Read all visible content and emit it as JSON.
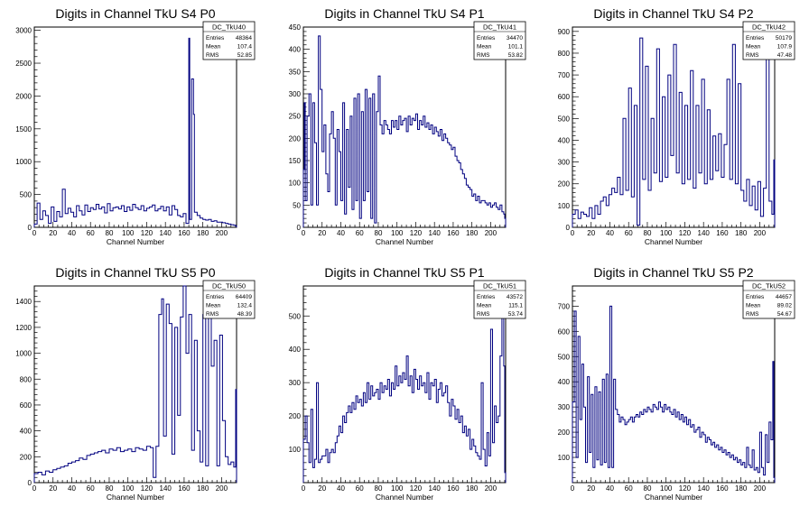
{
  "chart_data": [
    {
      "type": "bar",
      "title": "Digits in Channel TkU S4 P0",
      "xlabel": "Channel Number",
      "ylabel": "",
      "xlim": [
        0,
        216
      ],
      "ylim": [
        0,
        3050
      ],
      "xticks": [
        0,
        20,
        40,
        60,
        80,
        100,
        120,
        140,
        160,
        180,
        200
      ],
      "yticks": [
        0,
        500,
        1000,
        1500,
        2000,
        2500,
        3000
      ],
      "stats": {
        "name": "DC_TkU40",
        "entries": "48364",
        "mean": "107.4",
        "rms": "52.85"
      },
      "x": [
        0,
        3,
        6,
        9,
        12,
        15,
        18,
        21,
        24,
        27,
        30,
        33,
        36,
        39,
        42,
        45,
        48,
        51,
        54,
        57,
        60,
        63,
        66,
        69,
        72,
        75,
        78,
        81,
        84,
        87,
        90,
        93,
        96,
        99,
        102,
        105,
        108,
        111,
        114,
        117,
        120,
        123,
        126,
        129,
        132,
        135,
        138,
        141,
        144,
        147,
        150,
        153,
        156,
        159,
        162,
        165,
        166,
        168,
        170,
        171,
        174,
        177,
        180,
        183,
        186,
        189,
        192,
        195,
        198,
        201,
        204,
        207,
        210,
        213,
        215
      ],
      "values": [
        50,
        370,
        120,
        250,
        180,
        60,
        310,
        90,
        240,
        160,
        580,
        210,
        290,
        230,
        160,
        330,
        250,
        190,
        340,
        240,
        300,
        270,
        350,
        280,
        310,
        220,
        360,
        250,
        300,
        310,
        280,
        330,
        240,
        310,
        260,
        350,
        300,
        270,
        330,
        250,
        290,
        310,
        340,
        250,
        280,
        320,
        250,
        310,
        190,
        330,
        270,
        180,
        160,
        210,
        60,
        2880,
        120,
        2260,
        1720,
        230,
        180,
        140,
        120,
        110,
        120,
        90,
        100,
        80,
        80,
        70,
        60,
        50,
        40,
        30,
        20
      ]
    },
    {
      "type": "bar",
      "title": "Digits in Channel TkU S4 P1",
      "xlabel": "Channel Number",
      "ylabel": "",
      "xlim": [
        0,
        216
      ],
      "ylim": [
        0,
        450
      ],
      "xticks": [
        0,
        20,
        40,
        60,
        80,
        100,
        120,
        140,
        160,
        180,
        200
      ],
      "yticks": [
        0,
        50,
        100,
        150,
        200,
        250,
        300,
        350,
        400,
        450
      ],
      "stats": {
        "name": "DC_TkU41",
        "entries": "34470",
        "mean": "101.1",
        "rms": "53.82"
      },
      "x": [
        0,
        1,
        2,
        4,
        6,
        8,
        10,
        12,
        14,
        16,
        18,
        20,
        22,
        24,
        26,
        28,
        30,
        32,
        34,
        36,
        38,
        40,
        42,
        44,
        46,
        48,
        50,
        52,
        54,
        56,
        58,
        60,
        62,
        64,
        66,
        68,
        70,
        72,
        74,
        76,
        78,
        80,
        82,
        84,
        86,
        88,
        90,
        92,
        94,
        96,
        98,
        100,
        102,
        104,
        106,
        108,
        110,
        112,
        114,
        116,
        118,
        120,
        122,
        124,
        126,
        128,
        130,
        132,
        134,
        136,
        138,
        140,
        142,
        144,
        146,
        148,
        150,
        152,
        154,
        156,
        158,
        160,
        162,
        164,
        166,
        168,
        170,
        172,
        174,
        176,
        178,
        180,
        182,
        184,
        186,
        188,
        190,
        192,
        194,
        196,
        198,
        200,
        202,
        204,
        206,
        208,
        210,
        212,
        214,
        215
      ],
      "values": [
        130,
        280,
        60,
        250,
        300,
        50,
        280,
        190,
        50,
        430,
        310,
        170,
        230,
        120,
        80,
        210,
        260,
        200,
        50,
        220,
        170,
        60,
        280,
        30,
        220,
        90,
        250,
        40,
        290,
        60,
        300,
        20,
        260,
        60,
        310,
        80,
        290,
        20,
        300,
        10,
        260,
        340,
        230,
        210,
        240,
        230,
        220,
        210,
        240,
        225,
        240,
        220,
        250,
        230,
        240,
        245,
        215,
        250,
        230,
        245,
        240,
        255,
        220,
        240,
        230,
        250,
        225,
        235,
        220,
        230,
        210,
        225,
        215,
        205,
        220,
        195,
        210,
        200,
        190,
        185,
        175,
        180,
        160,
        150,
        145,
        130,
        120,
        110,
        95,
        90,
        85,
        70,
        75,
        60,
        70,
        55,
        60,
        60,
        55,
        50,
        55,
        45,
        50,
        55,
        45,
        40,
        50,
        35,
        30,
        20
      ]
    },
    {
      "type": "bar",
      "title": "Digits in Channel TkU S4 P2",
      "xlabel": "Channel Number",
      "ylabel": "",
      "xlim": [
        0,
        216
      ],
      "ylim": [
        0,
        920
      ],
      "xticks": [
        0,
        20,
        40,
        60,
        80,
        100,
        120,
        140,
        160,
        180,
        200
      ],
      "yticks": [
        0,
        100,
        200,
        300,
        400,
        500,
        600,
        700,
        800,
        900
      ],
      "stats": {
        "name": "DC_TkU42",
        "entries": "50179",
        "mean": "107.9",
        "rms": "47.48"
      },
      "x": [
        0,
        3,
        6,
        9,
        12,
        15,
        18,
        21,
        24,
        27,
        30,
        33,
        36,
        39,
        42,
        45,
        48,
        51,
        54,
        57,
        60,
        63,
        66,
        69,
        72,
        75,
        78,
        81,
        84,
        87,
        90,
        93,
        96,
        99,
        102,
        105,
        108,
        111,
        114,
        117,
        120,
        123,
        126,
        129,
        132,
        135,
        138,
        141,
        144,
        147,
        150,
        153,
        156,
        159,
        162,
        165,
        168,
        171,
        174,
        177,
        180,
        183,
        186,
        189,
        192,
        195,
        198,
        201,
        204,
        207,
        210,
        213,
        215
      ],
      "values": [
        60,
        80,
        40,
        70,
        60,
        50,
        90,
        40,
        100,
        60,
        120,
        140,
        100,
        150,
        180,
        160,
        230,
        150,
        500,
        170,
        640,
        140,
        560,
        10,
        870,
        220,
        740,
        170,
        500,
        250,
        820,
        210,
        600,
        230,
        700,
        330,
        840,
        250,
        620,
        200,
        560,
        220,
        720,
        180,
        560,
        250,
        680,
        200,
        540,
        220,
        420,
        260,
        430,
        230,
        380,
        680,
        220,
        840,
        200,
        660,
        170,
        120,
        220,
        100,
        190,
        80,
        210,
        50,
        180,
        830,
        120,
        60,
        310
      ]
    },
    {
      "type": "bar",
      "title": "Digits in Channel TkU S5 P0",
      "xlabel": "Channel Number",
      "ylabel": "",
      "xlim": [
        0,
        216
      ],
      "ylim": [
        0,
        1520
      ],
      "xticks": [
        0,
        20,
        40,
        60,
        80,
        100,
        120,
        140,
        160,
        180,
        200
      ],
      "yticks": [
        0,
        200,
        400,
        600,
        800,
        1000,
        1200,
        1400
      ],
      "stats": {
        "name": "DC_TkU50",
        "entries": "64409",
        "mean": "132.4",
        "rms": "48.39"
      },
      "x": [
        0,
        4,
        8,
        12,
        16,
        20,
        24,
        28,
        32,
        36,
        40,
        44,
        48,
        52,
        56,
        60,
        64,
        68,
        72,
        76,
        80,
        84,
        88,
        92,
        96,
        100,
        104,
        108,
        112,
        116,
        120,
        124,
        127,
        130,
        133,
        136,
        138,
        141,
        144,
        147,
        150,
        153,
        156,
        159,
        162,
        165,
        168,
        171,
        174,
        177,
        180,
        183,
        186,
        189,
        192,
        195,
        198,
        201,
        204,
        207,
        210,
        213,
        215
      ],
      "values": [
        70,
        80,
        60,
        90,
        80,
        100,
        110,
        120,
        130,
        150,
        160,
        170,
        190,
        180,
        210,
        220,
        230,
        240,
        250,
        230,
        260,
        250,
        270,
        240,
        250,
        260,
        240,
        270,
        260,
        250,
        280,
        270,
        40,
        280,
        1300,
        1420,
        360,
        1380,
        1230,
        220,
        1200,
        520,
        1280,
        1530,
        1000,
        1300,
        250,
        1100,
        400,
        160,
        1300,
        130,
        1500,
        900,
        1100,
        130,
        1140,
        480,
        200,
        140,
        160,
        120,
        720
      ]
    },
    {
      "type": "bar",
      "title": "Digits in Channel TkU S5 P1",
      "xlabel": "Channel Number",
      "ylabel": "",
      "xlim": [
        0,
        216
      ],
      "ylim": [
        0,
        590
      ],
      "xticks": [
        0,
        20,
        40,
        60,
        80,
        100,
        120,
        140,
        160,
        180,
        200
      ],
      "yticks": [
        100,
        200,
        300,
        400,
        500
      ],
      "stats": {
        "name": "DC_TkU51",
        "entries": "43572",
        "mean": "115.1",
        "rms": "53.74"
      },
      "x": [
        0,
        2,
        4,
        6,
        8,
        10,
        12,
        14,
        16,
        18,
        20,
        22,
        24,
        26,
        28,
        30,
        32,
        34,
        36,
        38,
        40,
        42,
        44,
        46,
        48,
        50,
        52,
        54,
        56,
        58,
        60,
        62,
        64,
        66,
        68,
        70,
        72,
        74,
        76,
        78,
        80,
        82,
        84,
        86,
        88,
        90,
        92,
        94,
        96,
        98,
        100,
        102,
        104,
        106,
        108,
        110,
        112,
        114,
        116,
        118,
        120,
        122,
        124,
        126,
        128,
        130,
        132,
        134,
        136,
        138,
        140,
        142,
        144,
        146,
        148,
        150,
        152,
        154,
        156,
        158,
        160,
        162,
        164,
        166,
        168,
        170,
        172,
        174,
        176,
        178,
        180,
        182,
        184,
        186,
        188,
        190,
        192,
        194,
        196,
        198,
        200,
        202,
        204,
        206,
        208,
        210,
        212,
        214,
        215
      ],
      "values": [
        130,
        200,
        120,
        60,
        220,
        45,
        70,
        300,
        60,
        70,
        80,
        80,
        100,
        60,
        90,
        100,
        90,
        120,
        140,
        170,
        150,
        200,
        180,
        210,
        230,
        210,
        240,
        220,
        260,
        240,
        250,
        230,
        270,
        240,
        300,
        250,
        290,
        260,
        270,
        280,
        250,
        300,
        270,
        290,
        280,
        310,
        260,
        300,
        280,
        350,
        290,
        320,
        300,
        330,
        310,
        380,
        290,
        320,
        270,
        340,
        310,
        280,
        320,
        290,
        300,
        270,
        330,
        250,
        300,
        290,
        310,
        240,
        280,
        300,
        260,
        270,
        290,
        240,
        200,
        250,
        230,
        190,
        220,
        180,
        200,
        150,
        170,
        140,
        160,
        100,
        130,
        110,
        90,
        80,
        70,
        300,
        100,
        50,
        150,
        80,
        460,
        120,
        230,
        180,
        200,
        380,
        500,
        350,
        30
      ]
    },
    {
      "type": "bar",
      "title": "Digits in Channel TkU S5 P2",
      "xlabel": "Channel Number",
      "ylabel": "",
      "xlim": [
        0,
        216
      ],
      "ylim": [
        0,
        780
      ],
      "xticks": [
        0,
        20,
        40,
        60,
        80,
        100,
        120,
        140,
        160,
        180,
        200
      ],
      "yticks": [
        100,
        200,
        300,
        400,
        500,
        600,
        700
      ],
      "stats": {
        "name": "DC_TkU52",
        "entries": "44657",
        "mean": "89.02",
        "rms": "54.67"
      },
      "x": [
        0,
        2,
        4,
        6,
        8,
        10,
        12,
        14,
        16,
        18,
        20,
        22,
        24,
        26,
        28,
        30,
        32,
        34,
        36,
        38,
        40,
        42,
        44,
        46,
        48,
        50,
        52,
        54,
        56,
        58,
        60,
        62,
        64,
        66,
        68,
        70,
        72,
        74,
        76,
        78,
        80,
        82,
        84,
        86,
        88,
        90,
        92,
        94,
        96,
        98,
        100,
        102,
        104,
        106,
        108,
        110,
        112,
        114,
        116,
        118,
        120,
        122,
        124,
        126,
        128,
        130,
        132,
        134,
        136,
        138,
        140,
        142,
        144,
        146,
        148,
        150,
        152,
        154,
        156,
        158,
        160,
        162,
        164,
        166,
        168,
        170,
        172,
        174,
        176,
        178,
        180,
        182,
        184,
        186,
        188,
        190,
        192,
        194,
        196,
        198,
        200,
        202,
        204,
        206,
        208,
        210,
        212,
        214,
        215
      ],
      "values": [
        320,
        680,
        100,
        580,
        250,
        470,
        300,
        80,
        420,
        120,
        350,
        60,
        380,
        90,
        360,
        70,
        410,
        80,
        430,
        60,
        700,
        60,
        410,
        290,
        270,
        240,
        260,
        250,
        230,
        240,
        250,
        260,
        240,
        260,
        270,
        260,
        280,
        270,
        290,
        280,
        300,
        290,
        280,
        310,
        300,
        290,
        320,
        300,
        280,
        310,
        290,
        300,
        280,
        270,
        290,
        260,
        280,
        250,
        270,
        240,
        260,
        230,
        250,
        220,
        230,
        200,
        210,
        220,
        180,
        200,
        190,
        160,
        180,
        170,
        150,
        160,
        140,
        150,
        130,
        140,
        120,
        130,
        110,
        120,
        100,
        110,
        90,
        100,
        80,
        90,
        70,
        80,
        60,
        140,
        70,
        60,
        130,
        50,
        60,
        40,
        200,
        60,
        30,
        190,
        80,
        240,
        170,
        480,
        20
      ]
    }
  ]
}
